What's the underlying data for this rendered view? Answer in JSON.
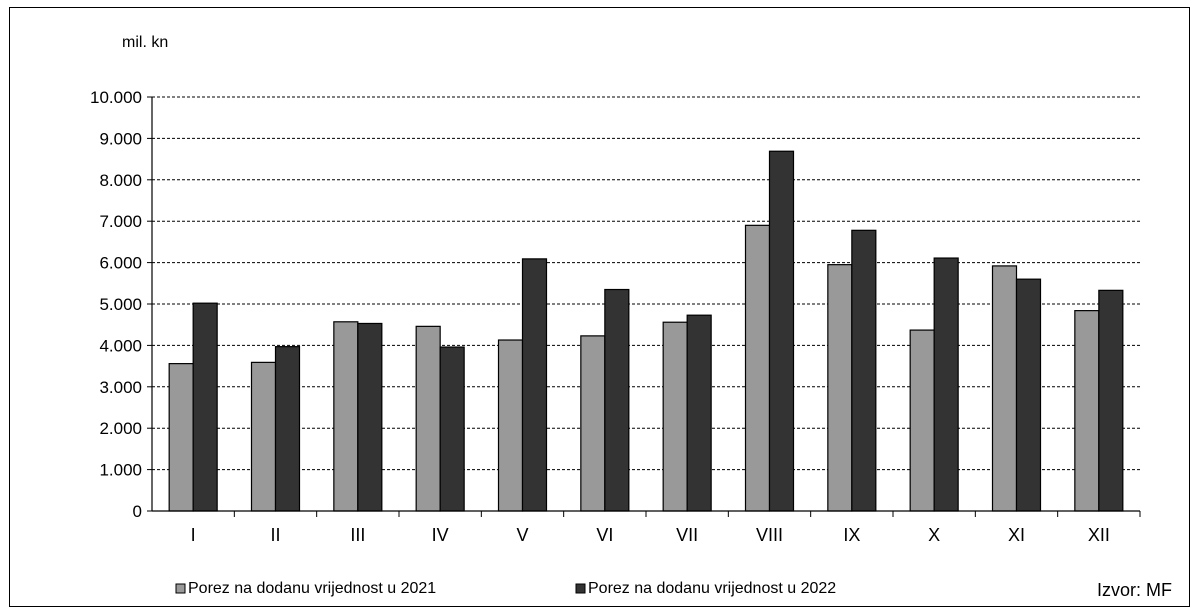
{
  "chart_data": {
    "type": "bar",
    "ylabel": "mil. kn",
    "ylim": [
      0,
      10000
    ],
    "yticks": [
      "0",
      "1.000",
      "2.000",
      "3.000",
      "4.000",
      "5.000",
      "6.000",
      "7.000",
      "8.000",
      "9.000",
      "10.000"
    ],
    "categories": [
      "I",
      "II",
      "III",
      "IV",
      "V",
      "VI",
      "VII",
      "VIII",
      "IX",
      "X",
      "XI",
      "XII"
    ],
    "series": [
      {
        "name": "Porez na dodanu vrijednost u 2021",
        "color": "#999999",
        "values": [
          3560,
          3590,
          4570,
          4460,
          4130,
          4230,
          4560,
          6900,
          5950,
          4370,
          5920,
          4840
        ]
      },
      {
        "name": "Porez na dodanu vrijednost u 2022",
        "color": "#333333",
        "values": [
          5020,
          3970,
          4530,
          3960,
          6090,
          5350,
          4730,
          8690,
          6780,
          6110,
          5600,
          5330
        ]
      }
    ],
    "grid": true,
    "grid_style": "dashed",
    "legend_position": "bottom-left",
    "source": "Izvor: MF"
  }
}
